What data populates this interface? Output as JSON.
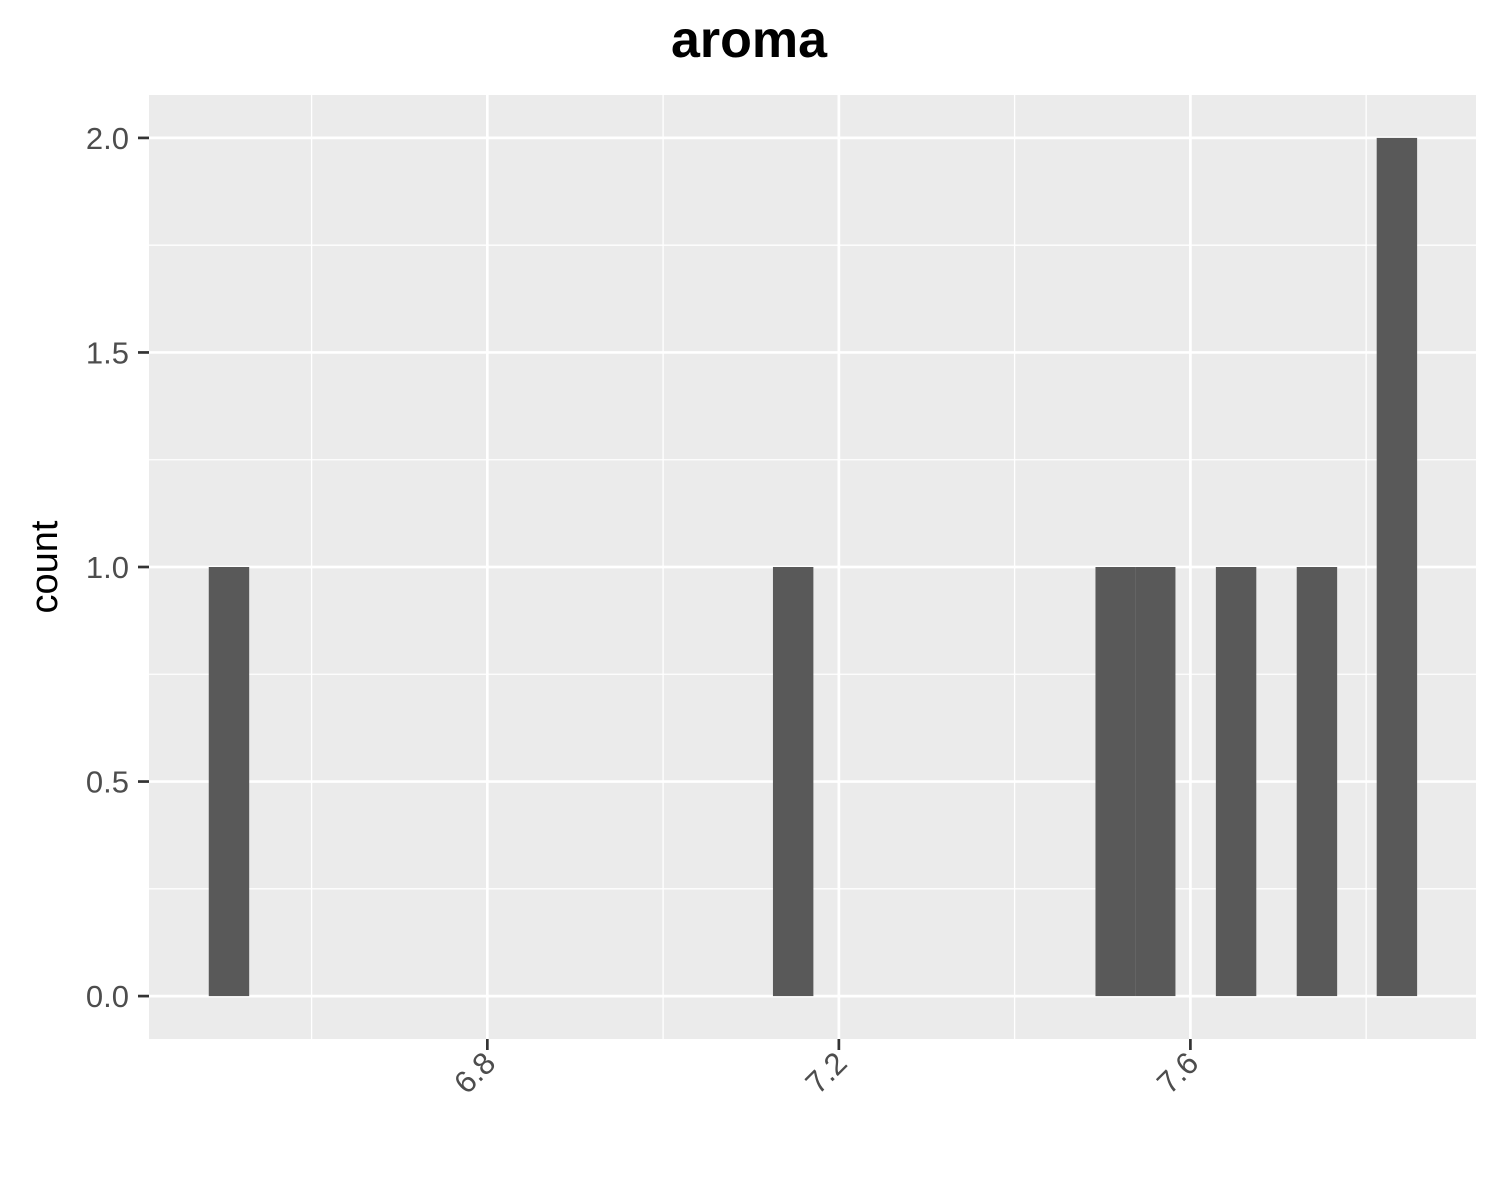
{
  "chart_data": {
    "type": "bar",
    "title": "aroma",
    "xlabel": "",
    "ylabel": "count",
    "xlim": [
      6.415,
      7.925
    ],
    "ylim": [
      -0.1,
      2.1
    ],
    "x_ticks": [
      {
        "value": 6.8,
        "label": "6.8"
      },
      {
        "value": 7.2,
        "label": "7.2"
      },
      {
        "value": 7.6,
        "label": "7.6"
      }
    ],
    "x_minor_ticks": [
      6.6,
      7.0,
      7.4,
      7.8
    ],
    "y_ticks": [
      {
        "value": 0.0,
        "label": "0.0"
      },
      {
        "value": 0.5,
        "label": "0.5"
      },
      {
        "value": 1.0,
        "label": "1.0"
      },
      {
        "value": 1.5,
        "label": "1.5"
      },
      {
        "value": 2.0,
        "label": "2.0"
      }
    ],
    "y_minor_ticks": [
      0.25,
      0.75,
      1.25,
      1.75
    ],
    "x_tick_label_rotation": -45,
    "grid": true,
    "legend": "none",
    "bins": [
      {
        "x0": 6.483,
        "x1": 6.529,
        "count": 1
      },
      {
        "x0": 7.125,
        "x1": 7.171,
        "count": 1
      },
      {
        "x0": 7.492,
        "x1": 7.538,
        "count": 1
      },
      {
        "x0": 7.538,
        "x1": 7.583,
        "count": 1
      },
      {
        "x0": 7.629,
        "x1": 7.675,
        "count": 1
      },
      {
        "x0": 7.721,
        "x1": 7.767,
        "count": 1
      },
      {
        "x0": 7.812,
        "x1": 7.858,
        "count": 2
      }
    ],
    "colors": {
      "bar": "#595959",
      "panel": "#ebebeb",
      "grid_major": "#ffffff",
      "grid_minor": "#ffffff",
      "tick_mark": "#333333"
    }
  }
}
